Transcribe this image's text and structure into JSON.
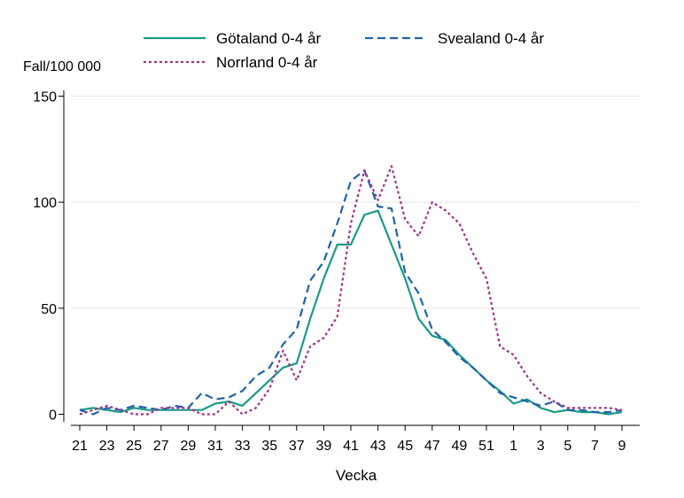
{
  "chart_data": {
    "type": "line",
    "title": "",
    "ylabel": "Fall/100 000",
    "xlabel": "Vecka",
    "ylim": [
      0,
      150
    ],
    "yticks": [
      0,
      50,
      100,
      150
    ],
    "grid": true,
    "legend_position": "top",
    "categories": [
      "21",
      "22",
      "23",
      "24",
      "25",
      "26",
      "27",
      "28",
      "29",
      "30",
      "31",
      "32",
      "33",
      "34",
      "35",
      "36",
      "37",
      "38",
      "39",
      "40",
      "41",
      "42",
      "43",
      "44",
      "45",
      "46",
      "47",
      "48",
      "49",
      "50",
      "51",
      "52",
      "1",
      "2",
      "3",
      "4",
      "5",
      "6",
      "7",
      "8",
      "9"
    ],
    "x_tick_labels": [
      "21",
      "23",
      "25",
      "27",
      "29",
      "31",
      "33",
      "35",
      "37",
      "39",
      "41",
      "43",
      "45",
      "47",
      "49",
      "51",
      "1",
      "3",
      "5",
      "7",
      "9"
    ],
    "series": [
      {
        "name": "Götaland 0-4 år",
        "color": "#1a9a86",
        "dash": "solid",
        "values": [
          2,
          3,
          2,
          1,
          3,
          2,
          2,
          2,
          2,
          2,
          5,
          6,
          4,
          10,
          16,
          22,
          24,
          45,
          64,
          80,
          80,
          94,
          96,
          80,
          64,
          45,
          37,
          35,
          28,
          22,
          16,
          11,
          5,
          7,
          3,
          1,
          2,
          1,
          1,
          0,
          1
        ]
      },
      {
        "name": "Svealand 0-4 år",
        "color": "#1f63a8",
        "dash": "dashed",
        "values": [
          2,
          0,
          3,
          2,
          4,
          3,
          2,
          4,
          3,
          10,
          7,
          8,
          11,
          18,
          22,
          33,
          40,
          63,
          72,
          90,
          110,
          115,
          98,
          97,
          67,
          57,
          40,
          34,
          27,
          22,
          16,
          10,
          8,
          6,
          4,
          6,
          2,
          2,
          1,
          1,
          2
        ]
      },
      {
        "name": "Norrland 0-4 år",
        "color": "#a23089",
        "dash": "dotted",
        "values": [
          0,
          2,
          4,
          2,
          0,
          0,
          3,
          3,
          3,
          0,
          0,
          6,
          0,
          3,
          12,
          30,
          16,
          32,
          36,
          46,
          90,
          115,
          101,
          117,
          92,
          84,
          100,
          96,
          90,
          76,
          64,
          32,
          28,
          18,
          10,
          6,
          3,
          3,
          3,
          3,
          2
        ]
      }
    ]
  }
}
